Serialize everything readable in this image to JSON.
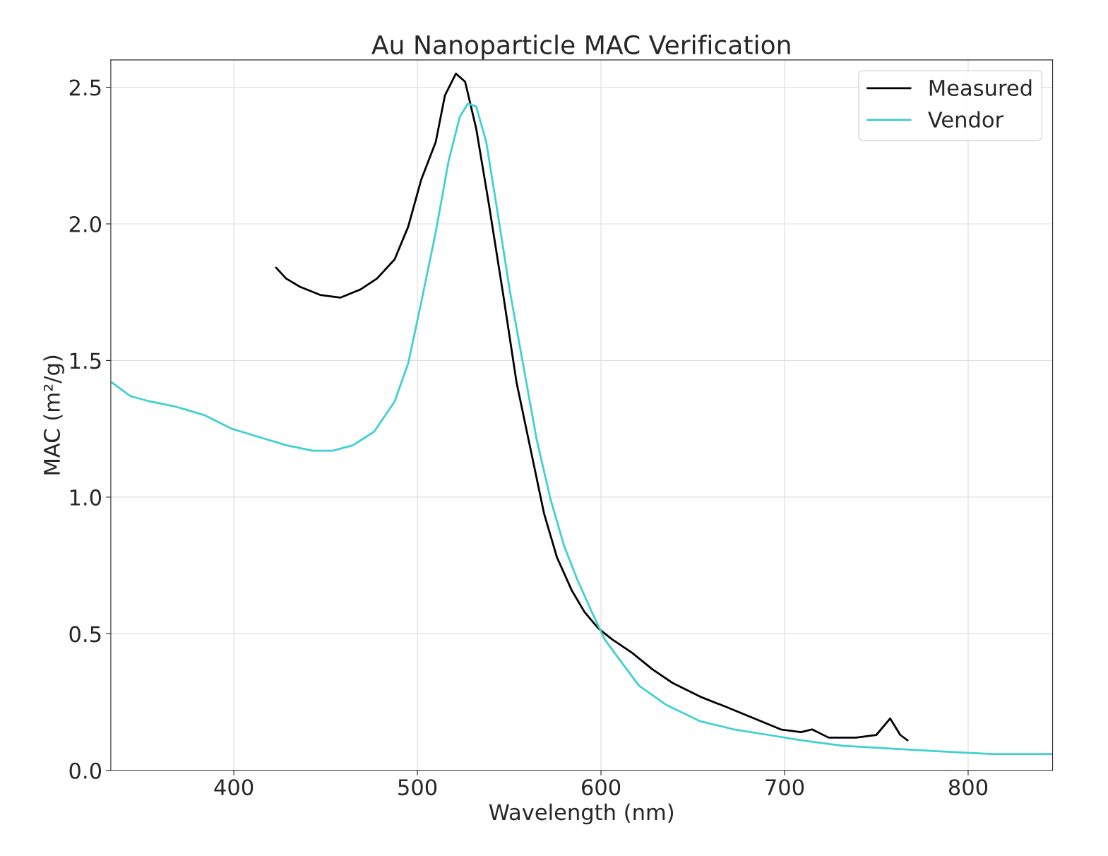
{
  "chart_data": {
    "type": "line",
    "title": "Au Nanoparticle MAC Verification",
    "xlabel": "Wavelength (nm)",
    "ylabel": "MAC (m²/g)",
    "xlim": [
      333,
      846
    ],
    "ylim": [
      0,
      2.6
    ],
    "xticks": [
      400,
      500,
      600,
      700,
      800
    ],
    "yticks": [
      {
        "value": 0,
        "label": "0.0"
      },
      0.5,
      {
        "value": 1,
        "label": "1.0"
      },
      1.5,
      {
        "value": 2,
        "label": "2.0"
      },
      2.5
    ],
    "grid": true,
    "legend": "top right",
    "series": [
      {
        "name": "Measured",
        "color": "#000000",
        "x": [
          423,
          428.5,
          436,
          447,
          458,
          469,
          478,
          487.6,
          495,
          502,
          510,
          515,
          521,
          526,
          532,
          539,
          547,
          554,
          561.5,
          569,
          576,
          584,
          591,
          598.5,
          606,
          617,
          628,
          639,
          654,
          669,
          683.5,
          698,
          709,
          715,
          724,
          739,
          750,
          757.5,
          763,
          767
        ],
        "values": [
          1.84,
          1.8,
          1.77,
          1.74,
          1.73,
          1.76,
          1.8,
          1.87,
          1.99,
          2.16,
          2.3,
          2.47,
          2.55,
          2.52,
          2.35,
          2.07,
          1.73,
          1.42,
          1.18,
          0.94,
          0.78,
          0.66,
          0.58,
          0.52,
          0.48,
          0.43,
          0.37,
          0.32,
          0.27,
          0.23,
          0.19,
          0.15,
          0.14,
          0.15,
          0.12,
          0.12,
          0.13,
          0.19,
          0.13,
          0.11
        ]
      },
      {
        "name": "Vendor",
        "color": "#40d0d0",
        "x": [
          333.5,
          343.5,
          354.5,
          369,
          384,
          399,
          413.7,
          428.5,
          443,
          454,
          465,
          476.5,
          487.6,
          495,
          502,
          510,
          517,
          523,
          527.5,
          532,
          537.5,
          543,
          550.5,
          558,
          565,
          572.6,
          580,
          587,
          595,
          602,
          609.6,
          620.7,
          635.5,
          654,
          672.5,
          691,
          709,
          731.6,
          757.5,
          783,
          813,
          845.5
        ],
        "values": [
          1.42,
          1.37,
          1.35,
          1.33,
          1.3,
          1.25,
          1.22,
          1.19,
          1.17,
          1.17,
          1.19,
          1.24,
          1.35,
          1.49,
          1.71,
          1.97,
          2.23,
          2.39,
          2.44,
          2.43,
          2.3,
          2.07,
          1.75,
          1.47,
          1.21,
          0.99,
          0.82,
          0.7,
          0.58,
          0.48,
          0.41,
          0.31,
          0.24,
          0.18,
          0.15,
          0.13,
          0.11,
          0.09,
          0.08,
          0.07,
          0.06,
          0.06
        ]
      }
    ]
  }
}
